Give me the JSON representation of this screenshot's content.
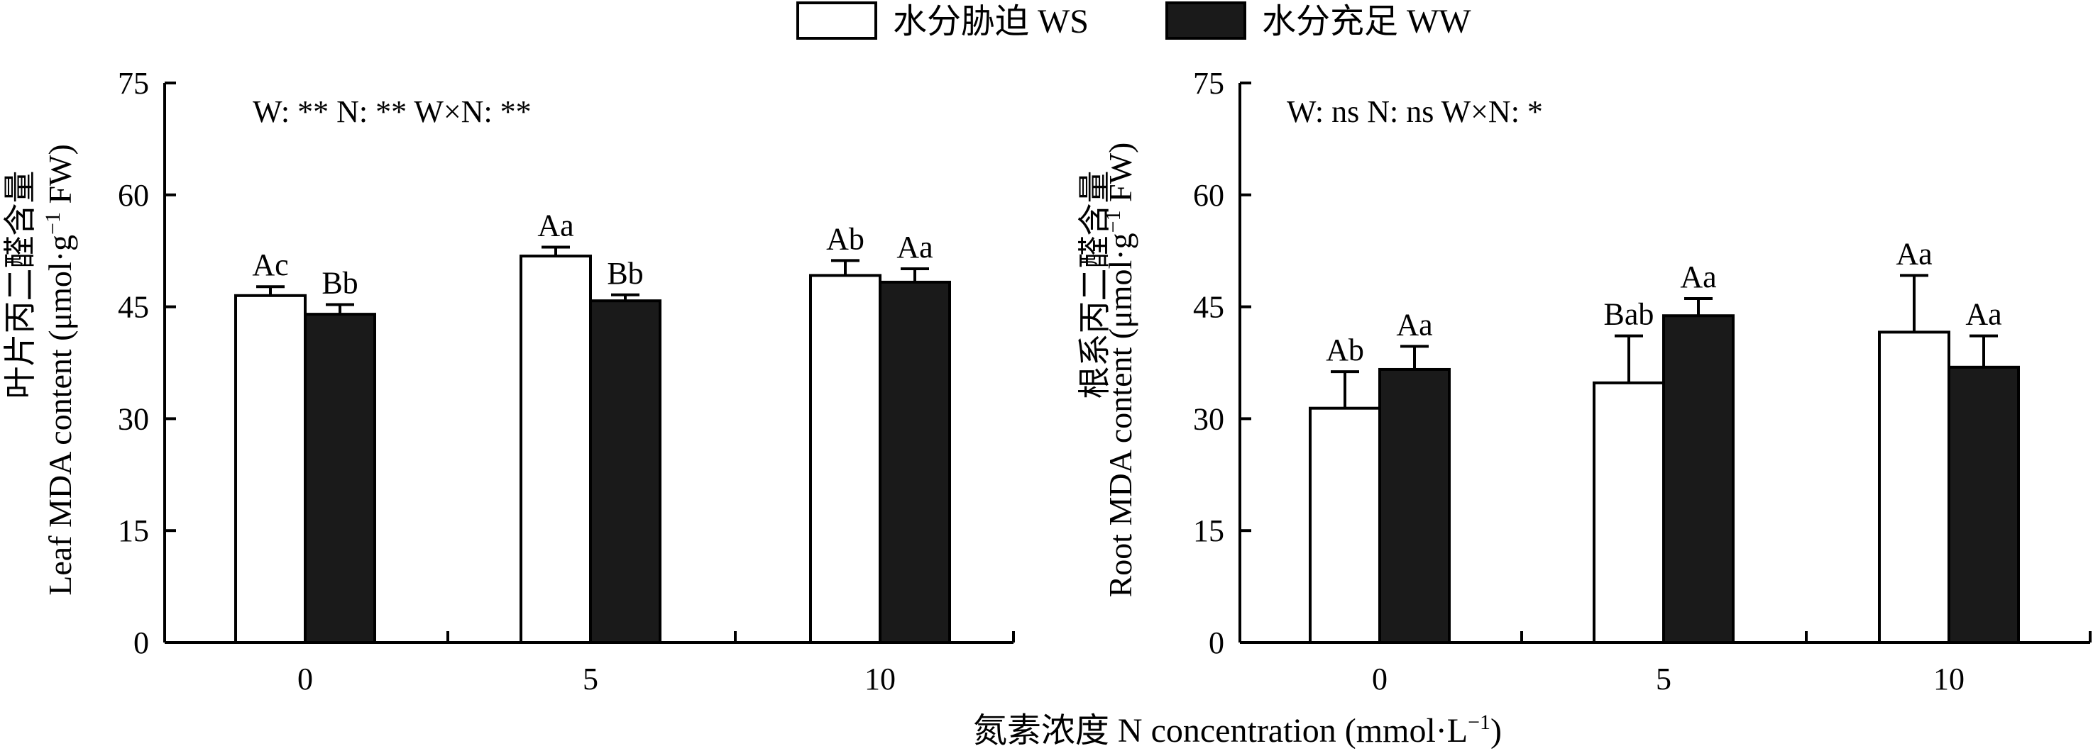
{
  "legend": {
    "ws_label": "水分胁迫 WS",
    "ww_label": "水分充足 WW"
  },
  "colors": {
    "ws": "#ffffff",
    "ww": "#1a1a1a",
    "axis": "#000000"
  },
  "x_axis_label": "氮素浓度 N concentration (mmol·L",
  "x_axis_label_sup": "−1",
  "x_axis_label_end": ")",
  "chart_data": [
    {
      "type": "bar",
      "title": "",
      "ylabel_cn": "叶片丙二醛含量",
      "ylabel_en": "Leaf MDA content (μmol·g",
      "ylabel_sup": "−1",
      "ylabel_end": " FW)",
      "stats_text": "W: **  N: **   W×N: **",
      "categories": [
        "0",
        "5",
        "10"
      ],
      "ylim": [
        0,
        75
      ],
      "yticks": [
        0,
        15,
        30,
        45,
        60,
        75
      ],
      "series": [
        {
          "name": "水分胁迫 WS",
          "values": [
            46.5,
            51.8,
            49.2
          ],
          "errors": [
            1.2,
            1.2,
            2.0
          ],
          "labels": [
            "Ac",
            "Aa",
            "Ab"
          ]
        },
        {
          "name": "水分充足 WW",
          "values": [
            44.0,
            45.8,
            48.3
          ],
          "errors": [
            1.3,
            0.8,
            1.8
          ],
          "labels": [
            "Bb",
            "Bb",
            "Aa"
          ]
        }
      ]
    },
    {
      "type": "bar",
      "title": "",
      "ylabel_cn": "根系丙二醛含量",
      "ylabel_en": "Root MDA content (μmol·g",
      "ylabel_sup": "−1",
      "ylabel_end": " FW)",
      "stats_text": "W: ns  N: ns   W×N: *",
      "categories": [
        "0",
        "5",
        "10"
      ],
      "ylim": [
        0,
        75
      ],
      "yticks": [
        0,
        15,
        30,
        45,
        60,
        75
      ],
      "series": [
        {
          "name": "水分胁迫 WS",
          "values": [
            31.4,
            34.8,
            41.6
          ],
          "errors": [
            4.9,
            6.3,
            7.6
          ],
          "labels": [
            "Ab",
            "Bab",
            "Aa"
          ]
        },
        {
          "name": "水分充足 WW",
          "values": [
            36.6,
            43.8,
            36.9
          ],
          "errors": [
            3.1,
            2.3,
            4.2
          ],
          "labels": [
            "Aa",
            "Aa",
            "Aa"
          ]
        }
      ]
    }
  ]
}
